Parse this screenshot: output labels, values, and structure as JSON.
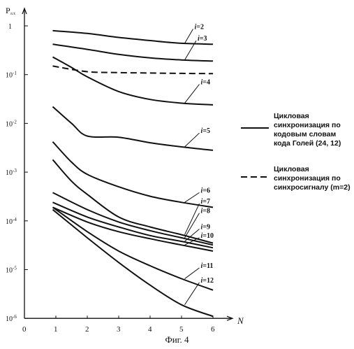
{
  "chart_data": {
    "type": "line",
    "ylabel": "P",
    "ylabel_sub": "л.т.",
    "xlabel": "N",
    "y_scale": "log",
    "ylim": [
      1e-06,
      3
    ],
    "xlim": [
      0,
      6.6
    ],
    "x_ticks": [
      "0",
      "1",
      "2",
      "3",
      "4",
      "5",
      "6"
    ],
    "x_tick_values": [
      0,
      1,
      2,
      3,
      4,
      5,
      6
    ],
    "y_ticks": [
      "1",
      "10-1",
      "10-2",
      "10-3",
      "10-4",
      "10-5",
      "10-6"
    ],
    "y_tick_values": [
      1,
      0.1,
      0.01,
      0.001,
      0.0001,
      1e-05,
      1e-06
    ],
    "series": [
      {
        "name": "i=2",
        "style": "solid",
        "x": [
          0.9,
          2,
          3,
          4,
          5,
          6
        ],
        "y": [
          0.8,
          0.7,
          0.58,
          0.5,
          0.44,
          0.42
        ],
        "label_at": {
          "x": 5.1,
          "y": 0.95
        }
      },
      {
        "name": "i=3",
        "style": "solid",
        "x": [
          0.9,
          2,
          3,
          4,
          5,
          6
        ],
        "y": [
          0.42,
          0.33,
          0.26,
          0.22,
          0.2,
          0.19
        ],
        "label_at": {
          "x": 5.2,
          "y": 0.55
        }
      },
      {
        "name": "i=4",
        "style": "solid",
        "x": [
          0.9,
          1.5,
          2,
          3,
          4,
          5,
          6
        ],
        "y": [
          0.23,
          0.14,
          0.09,
          0.045,
          0.031,
          0.026,
          0.024
        ],
        "label_at": {
          "x": 5.3,
          "y": 0.07
        }
      },
      {
        "name": "i=5",
        "style": "solid",
        "x": [
          0.9,
          1.5,
          2,
          3,
          4,
          5,
          6
        ],
        "y": [
          0.022,
          0.01,
          0.0055,
          0.0052,
          0.004,
          0.0033,
          0.0028
        ],
        "label_at": {
          "x": 5.3,
          "y": 0.007
        }
      },
      {
        "name": "i=6",
        "style": "solid",
        "x": [
          0.9,
          1.5,
          2,
          3,
          4,
          5,
          6
        ],
        "y": [
          0.0042,
          0.0016,
          0.0009,
          0.0005,
          0.00032,
          0.00024,
          0.00019
        ],
        "label_at": {
          "x": 5.3,
          "y": 0.00042
        }
      },
      {
        "name": "i=7",
        "style": "solid",
        "x": [
          0.9,
          1.5,
          2,
          3,
          4,
          5,
          6
        ],
        "y": [
          0.0018,
          0.00065,
          0.00035,
          0.00012,
          7.5e-05,
          5.2e-05,
          3.5e-05
        ],
        "label_at": {
          "x": 5.3,
          "y": 0.00025
        }
      },
      {
        "name": "i=8",
        "style": "solid",
        "x": [
          0.9,
          2,
          3,
          4,
          5,
          6
        ],
        "y": [
          0.00038,
          0.00017,
          9.5e-05,
          6.3e-05,
          4.5e-05,
          3.2e-05
        ],
        "label_at": {
          "x": 5.3,
          "y": 0.00016
        }
      },
      {
        "name": "i=9",
        "style": "solid",
        "x": [
          0.9,
          2,
          3,
          4,
          5,
          6
        ],
        "y": [
          0.00024,
          0.00012,
          7.5e-05,
          5e-05,
          3.8e-05,
          2.8e-05
        ],
        "label_at": {
          "x": 5.3,
          "y": 7.5e-05
        }
      },
      {
        "name": "i=10",
        "style": "solid",
        "x": [
          0.9,
          2,
          3,
          4,
          5,
          6
        ],
        "y": [
          0.00019,
          9.5e-05,
          6e-05,
          4.3e-05,
          3.2e-05,
          2.4e-05
        ],
        "label_at": {
          "x": 5.3,
          "y": 5e-05
        }
      },
      {
        "name": "i=11",
        "style": "solid",
        "x": [
          0.9,
          2,
          3,
          4,
          5,
          6
        ],
        "y": [
          0.00019,
          6e-05,
          2.4e-05,
          1.2e-05,
          6.5e-06,
          3.8e-06
        ],
        "label_at": {
          "x": 5.3,
          "y": 1.2e-05
        }
      },
      {
        "name": "i=12",
        "style": "solid",
        "x": [
          0.9,
          2,
          3,
          4,
          5,
          6
        ],
        "y": [
          0.00017,
          4.5e-05,
          1.4e-05,
          4.8e-06,
          1.9e-06,
          1.1e-06
        ],
        "label_at": {
          "x": 5.3,
          "y": 6e-06
        }
      },
      {
        "name": "",
        "style": "dashed",
        "x": [
          0.9,
          2,
          3,
          4,
          5,
          6
        ],
        "y": [
          0.15,
          0.115,
          0.11,
          0.108,
          0.106,
          0.105
        ]
      }
    ],
    "legend": {
      "placement": "right",
      "entries": [
        {
          "style": "solid",
          "text": "Цикловая\nсинхронизация по\nкодовым словам\nкода Голей (24, 12)"
        },
        {
          "style": "dashed",
          "text": "Цикловая\nсинхронизация по\nсинхросигналу (m=2)"
        }
      ]
    }
  },
  "caption": "Фиг. 4"
}
